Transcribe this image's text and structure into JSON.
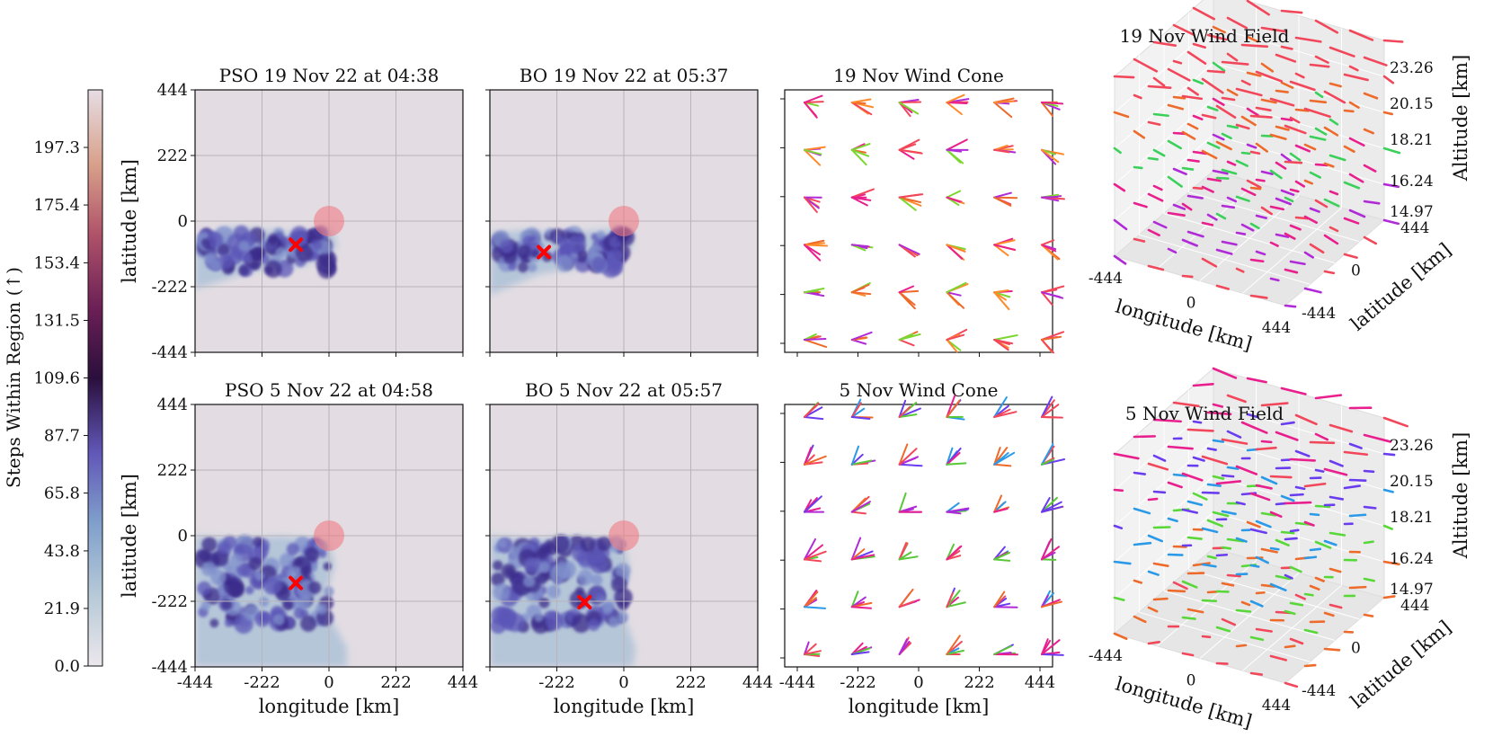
{
  "colors": {
    "background_panel": "#e3dde3",
    "grid": "#b9b4ba",
    "target_fill": "#f07b84",
    "marker": "#ff0000",
    "cmap_low": "#ece7ec",
    "cmap_mid_blue": "#6a5fbb",
    "cmap_dark": "#2a0f3c",
    "cmap_high": "#e6d8d8"
  },
  "colorbar": {
    "label": "Steps Within Region (↑)",
    "ticks": [
      "0.0",
      "21.9",
      "43.8",
      "65.8",
      "87.7",
      "109.6",
      "131.5",
      "153.4",
      "175.4",
      "197.3"
    ],
    "range": [
      0,
      219.2
    ]
  },
  "chart_data": [
    {
      "type": "heatmap",
      "title": "PSO 19 Nov 22 at 04:38",
      "xlabel": "",
      "ylabel": "latitude [km]",
      "xticks": [],
      "yticks": [
        "444",
        "222",
        "0",
        "-222",
        "-444"
      ],
      "xlim": [
        -444,
        444
      ],
      "ylim": [
        -444,
        444
      ],
      "best_point": [
        -110,
        -80
      ],
      "target_center": [
        0,
        0
      ],
      "plume": "east-west band from x=-444 to x=20, y=-160 to y=-60"
    },
    {
      "type": "heatmap",
      "title": "BO 19 Nov 22 at 05:37",
      "xlabel": "",
      "ylabel": "",
      "xticks": [],
      "yticks": [],
      "xlim": [
        -444,
        444
      ],
      "ylim": [
        -444,
        444
      ],
      "best_point": [
        -265,
        -105
      ],
      "target_center": [
        0,
        0
      ]
    },
    {
      "type": "heatmap",
      "title": "PSO 5 Nov 22 at 04:58",
      "xlabel": "longitude [km]",
      "ylabel": "latitude [km]",
      "xticks": [
        "-444",
        "-222",
        "0",
        "222",
        "444"
      ],
      "yticks": [
        "444",
        "222",
        "0",
        "-222",
        "-444"
      ],
      "xlim": [
        -444,
        444
      ],
      "ylim": [
        -444,
        444
      ],
      "best_point": [
        -110,
        -160
      ],
      "target_center": [
        0,
        0
      ]
    },
    {
      "type": "heatmap",
      "title": "BO 5 Nov 22 at 05:57",
      "xlabel": "longitude [km]",
      "ylabel": "",
      "xticks": [
        "-222",
        "0",
        "222",
        "444"
      ],
      "yticks": [],
      "xlim": [
        -444,
        444
      ],
      "ylim": [
        -444,
        444
      ],
      "best_point": [
        -130,
        -225
      ],
      "target_center": [
        0,
        0
      ]
    },
    {
      "type": "scatter",
      "title": "19 Nov Wind Cone",
      "xlabel": "",
      "ylabel": "",
      "xticks": [],
      "grid_rows": 6,
      "grid_cols": 6,
      "dominant_directions": "east / east-southeast"
    },
    {
      "type": "scatter",
      "title": "5 Nov Wind Cone",
      "xlabel": "longitude [km]",
      "ylabel": "",
      "xticks": [
        "-444",
        "-222",
        "0",
        "222",
        "444"
      ],
      "grid_rows": 6,
      "grid_cols": 6,
      "dominant_directions": "northeast"
    },
    {
      "type": "scatter",
      "title": "19 Nov Wind Field",
      "xlabel": "longitude [km]",
      "ylabel": "latitude [km]",
      "zlabel": "Altitude [km]",
      "xticks": [
        "-444",
        "0",
        "444"
      ],
      "yticks": [
        "-444",
        "0",
        "444"
      ],
      "zticks": [
        "14.97",
        "16.24",
        "18.21",
        "20.15",
        "23.26"
      ]
    },
    {
      "type": "scatter",
      "title": "5 Nov Wind Field",
      "xlabel": "longitude [km]",
      "ylabel": "latitude [km]",
      "zlabel": "Altitude [km]",
      "xticks": [
        "-444",
        "0",
        "444"
      ],
      "yticks": [
        "-444",
        "0",
        "444"
      ],
      "zticks": [
        "14.97",
        "16.24",
        "18.21",
        "20.15",
        "23.26"
      ]
    }
  ]
}
